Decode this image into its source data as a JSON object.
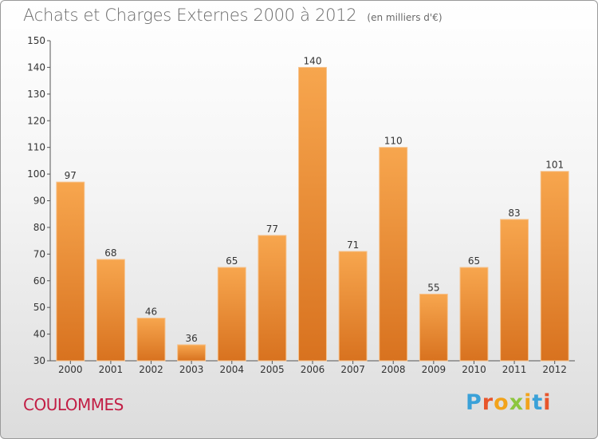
{
  "header": {
    "title": "Achats et Charges Externes 2000 à 2012",
    "unit": "(en milliers d'€)"
  },
  "footer": {
    "commune": "COULOMMES",
    "logo_text": "Proxiti"
  },
  "colors": {
    "bar_light": "#f7a64e",
    "bar_dark": "#d8721f",
    "commune": "#c21e45",
    "logo_letters": [
      "#3aa1d8",
      "#e8552b",
      "#f2a31b",
      "#8dc63f",
      "#f2a31b",
      "#3aa1d8",
      "#e8552b"
    ]
  },
  "chart_data": {
    "type": "bar",
    "title": "Achats et Charges Externes 2000 à 2012",
    "xlabel": "",
    "ylabel": "",
    "categories": [
      "2000",
      "2001",
      "2002",
      "2003",
      "2004",
      "2005",
      "2006",
      "2007",
      "2008",
      "2009",
      "2010",
      "2011",
      "2012"
    ],
    "values": [
      97,
      68,
      46,
      36,
      65,
      77,
      140,
      71,
      110,
      55,
      65,
      83,
      101
    ],
    "ylim": [
      30,
      150
    ],
    "yticks": [
      30,
      40,
      50,
      60,
      70,
      80,
      90,
      100,
      110,
      120,
      130,
      140,
      150
    ],
    "grid": false,
    "data_labels": true
  }
}
